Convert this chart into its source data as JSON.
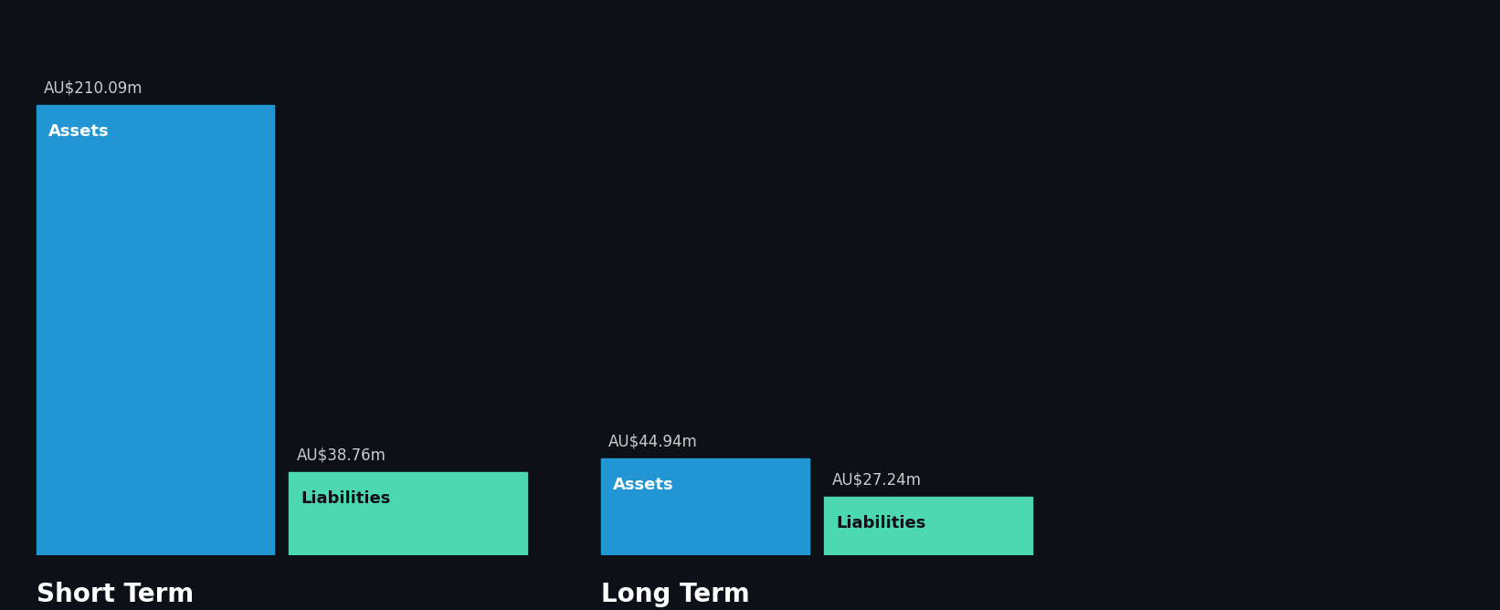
{
  "background_color": "#0d1117",
  "bar_color_assets": "#2196d3",
  "bar_color_liabilities": "#4dd9b0",
  "short_term_assets": 210.09,
  "short_term_liabilities": 38.76,
  "long_term_assets": 44.94,
  "long_term_liabilities": 27.24,
  "label_assets": "Assets",
  "label_liabilities": "Liabilities",
  "section_labels": [
    "Short Term",
    "Long Term"
  ],
  "text_color": "#ffffff",
  "label_color_inside": "#ffffff",
  "label_color_liabilities_inside": "#0d1117",
  "annotation_color": "#cccccc",
  "section_label_fontsize": 20,
  "bar_label_fontsize": 13,
  "value_label_fontsize": 12
}
